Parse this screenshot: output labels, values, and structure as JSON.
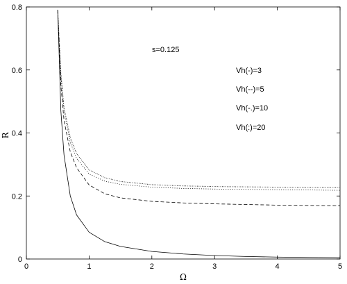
{
  "chart_data": {
    "type": "line",
    "title": "",
    "xlabel": "Ω",
    "ylabel": "R",
    "xlim": [
      0,
      5
    ],
    "ylim": [
      0,
      0.8
    ],
    "xticks": [
      0,
      1,
      2,
      3,
      4,
      5
    ],
    "yticks": [
      0,
      0.2,
      0.4,
      0.6,
      0.8
    ],
    "xtick_labels": [
      "0",
      "1",
      "2",
      "3",
      "4",
      "5"
    ],
    "ytick_labels": [
      "0",
      "0.2",
      "0.4",
      "0.6",
      "0.8"
    ],
    "grid": false,
    "legend_placement": "right",
    "annotations": [
      "s=0.125",
      "Vh(-)=3",
      "Vh(--)=5",
      "Vh(-.)=10",
      "Vh(:)=20"
    ],
    "line_color": "#000000",
    "series": [
      {
        "style": "solid",
        "x": [
          0.5,
          0.55,
          0.6,
          0.7,
          0.8,
          1.0,
          1.25,
          1.5,
          2.0,
          2.5,
          3.0,
          3.5,
          4.0,
          4.5,
          5.0
        ],
        "y": [
          0.79,
          0.47,
          0.33,
          0.2,
          0.14,
          0.085,
          0.055,
          0.04,
          0.024,
          0.016,
          0.011,
          0.008,
          0.006,
          0.005,
          0.004
        ]
      },
      {
        "style": "dashed",
        "x": [
          0.5,
          0.55,
          0.6,
          0.7,
          0.8,
          1.0,
          1.25,
          1.5,
          2.0,
          2.5,
          3.0,
          3.5,
          4.0,
          4.5,
          5.0
        ],
        "y": [
          0.79,
          0.55,
          0.44,
          0.34,
          0.29,
          0.235,
          0.207,
          0.194,
          0.183,
          0.178,
          0.175,
          0.173,
          0.171,
          0.17,
          0.169
        ]
      },
      {
        "style": "dashdot",
        "x": [
          0.5,
          0.55,
          0.6,
          0.7,
          0.8,
          1.0,
          1.25,
          1.5,
          2.0,
          2.5,
          3.0,
          3.5,
          4.0,
          4.5,
          5.0
        ],
        "y": [
          0.79,
          0.58,
          0.47,
          0.37,
          0.32,
          0.27,
          0.247,
          0.237,
          0.228,
          0.224,
          0.222,
          0.221,
          0.22,
          0.219,
          0.218
        ]
      },
      {
        "style": "dotted",
        "x": [
          0.5,
          0.55,
          0.6,
          0.7,
          0.8,
          1.0,
          1.25,
          1.5,
          2.0,
          2.5,
          3.0,
          3.5,
          4.0,
          4.5,
          5.0
        ],
        "y": [
          0.79,
          0.59,
          0.48,
          0.385,
          0.335,
          0.283,
          0.258,
          0.246,
          0.236,
          0.232,
          0.23,
          0.229,
          0.228,
          0.227,
          0.227
        ]
      }
    ]
  }
}
